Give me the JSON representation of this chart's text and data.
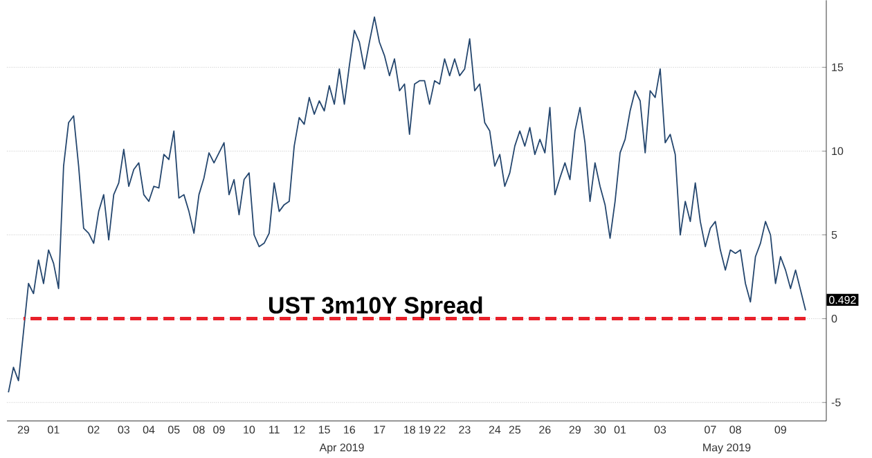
{
  "chart_data": {
    "type": "line",
    "title": "UST 3m10Y Spread",
    "categories": [
      null,
      null,
      null,
      "29",
      null,
      null,
      null,
      null,
      null,
      "01",
      null,
      null,
      null,
      null,
      null,
      null,
      null,
      "02",
      null,
      null,
      null,
      null,
      null,
      "03",
      null,
      null,
      null,
      null,
      "04",
      null,
      null,
      null,
      null,
      "05",
      null,
      null,
      null,
      null,
      "08",
      null,
      null,
      null,
      "09",
      null,
      null,
      null,
      null,
      null,
      "10",
      null,
      null,
      null,
      null,
      "11",
      null,
      null,
      null,
      null,
      "12",
      null,
      null,
      null,
      null,
      "15",
      null,
      null,
      null,
      null,
      "16",
      null,
      null,
      null,
      null,
      null,
      "17",
      null,
      null,
      null,
      null,
      null,
      "18",
      null,
      null,
      "19",
      null,
      null,
      "22",
      null,
      null,
      null,
      null,
      "23",
      null,
      null,
      null,
      null,
      null,
      "24",
      null,
      null,
      null,
      "25",
      null,
      null,
      null,
      null,
      null,
      "26",
      null,
      null,
      null,
      null,
      null,
      "29",
      null,
      null,
      null,
      null,
      "30",
      null,
      null,
      null,
      "01",
      null,
      null,
      null,
      null,
      null,
      null,
      null,
      "03",
      null,
      null,
      null,
      null,
      null,
      null,
      null,
      null,
      null,
      "07",
      null,
      null,
      null,
      null,
      "08",
      null,
      null,
      null,
      null,
      null,
      null,
      null,
      null,
      "09",
      null,
      null,
      null,
      null,
      null
    ],
    "series": [
      {
        "color": "#24466e",
        "values": [
          -4.4,
          -2.9,
          -3.7,
          -0.8,
          2.1,
          1.5,
          3.5,
          2.1,
          4.1,
          3.3,
          1.8,
          9.1,
          11.7,
          12.1,
          9.1,
          5.4,
          5.1,
          4.5,
          6.4,
          7.4,
          4.7,
          7.4,
          8.1,
          10.1,
          7.9,
          8.9,
          9.3,
          7.4,
          7.0,
          7.9,
          7.8,
          9.8,
          9.5,
          11.2,
          7.2,
          7.4,
          6.4,
          5.1,
          7.4,
          8.4,
          9.9,
          9.3,
          9.9,
          10.5,
          7.4,
          8.3,
          6.2,
          8.3,
          8.7,
          5.0,
          4.3,
          4.5,
          5.1,
          8.1,
          6.4,
          6.8,
          7.0,
          10.3,
          12.0,
          11.6,
          13.2,
          12.2,
          13.0,
          12.4,
          13.9,
          12.8,
          14.9,
          12.8,
          15.1,
          17.2,
          16.5,
          14.9,
          16.5,
          18.0,
          16.5,
          15.7,
          14.5,
          15.5,
          13.6,
          14.0,
          11.0,
          14.0,
          14.2,
          14.2,
          12.8,
          14.2,
          14.0,
          15.5,
          14.5,
          15.5,
          14.5,
          14.9,
          16.7,
          13.6,
          14.0,
          11.7,
          11.2,
          9.1,
          9.8,
          7.9,
          8.7,
          10.3,
          11.2,
          10.3,
          11.4,
          9.8,
          10.7,
          9.9,
          12.6,
          7.4,
          8.4,
          9.3,
          8.3,
          11.2,
          12.6,
          10.5,
          7.0,
          9.3,
          7.9,
          6.8,
          4.8,
          7.0,
          9.9,
          10.7,
          12.4,
          13.6,
          13.0,
          9.9,
          13.6,
          13.2,
          14.9,
          10.5,
          11.0,
          9.8,
          5.0,
          7.0,
          5.8,
          8.1,
          5.8,
          4.3,
          5.4,
          5.8,
          4.1,
          2.9,
          4.1,
          3.9,
          4.1,
          2.1,
          1.0,
          3.7,
          4.5,
          5.8,
          5.0,
          2.1,
          3.7,
          2.9,
          1.8,
          2.9,
          1.7,
          0.5
        ]
      }
    ],
    "ylim": [
      -6.1,
      19
    ],
    "yticks": [
      -5,
      0,
      5,
      10,
      15
    ],
    "grid": "y",
    "line_style": "solid",
    "ref_lines": [
      {
        "axis": "y",
        "value": 0,
        "color": "#e8202a",
        "line_style": "dashed"
      }
    ],
    "annotations": [
      "Apr 2019",
      "May 2019",
      "0.492"
    ]
  }
}
